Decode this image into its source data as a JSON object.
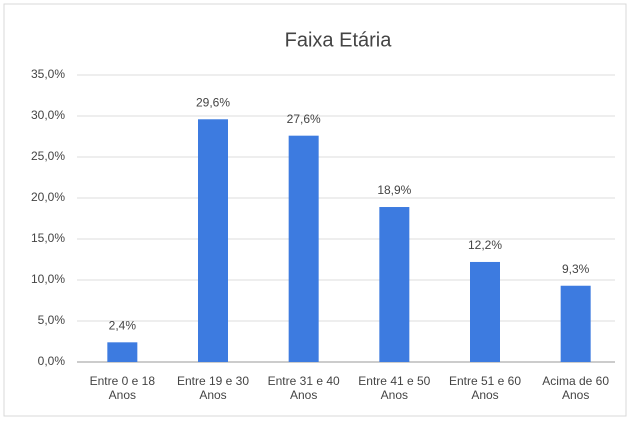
{
  "chart_data": {
    "type": "bar",
    "title": "Faixa Etária",
    "categories": [
      "Entre 0 e 18 Anos",
      "Entre 19 e 30 Anos",
      "Entre 31 e 40 Anos",
      "Entre 41 e 50 Anos",
      "Entre 51 e 60 Anos",
      "Acima de 60 Anos"
    ],
    "values": [
      2.4,
      29.6,
      27.6,
      18.9,
      12.2,
      9.3
    ],
    "value_labels": [
      "2,4%",
      "29,6%",
      "27,6%",
      "18,9%",
      "12,2%",
      "9,3%"
    ],
    "color": "#3d7be0",
    "ylim": [
      0,
      35
    ],
    "yticks": [
      {
        "value": 0,
        "label": "0,0%"
      },
      {
        "value": 5,
        "label": "5,0%"
      },
      {
        "value": 10,
        "label": "10,0%"
      },
      {
        "value": 15,
        "label": "15,0%"
      },
      {
        "value": 20,
        "label": "20,0%"
      },
      {
        "value": 25,
        "label": "25,0%"
      },
      {
        "value": 30,
        "label": "30,0%"
      },
      {
        "value": 35,
        "label": "35,0%"
      }
    ],
    "grid": true
  }
}
